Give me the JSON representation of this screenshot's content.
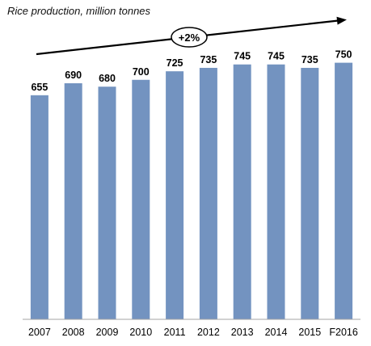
{
  "chart_data": {
    "type": "bar",
    "title": "Rice production, million tonnes",
    "xlabel": "",
    "ylabel": "",
    "categories": [
      "2007",
      "2008",
      "2009",
      "2010",
      "2011",
      "2012",
      "2013",
      "2014",
      "2015",
      "F2016"
    ],
    "values": [
      655,
      690,
      680,
      700,
      725,
      735,
      745,
      745,
      735,
      750
    ],
    "data_labels": [
      "655",
      "690",
      "680",
      "700",
      "725",
      "735",
      "745",
      "745",
      "735",
      "750"
    ],
    "ylim": [
      0,
      800
    ],
    "grid": false,
    "legend": "none",
    "annotations": [
      {
        "type": "trend-arrow",
        "text": "+2%"
      }
    ],
    "colors": {
      "bar": "#7393C0",
      "text": "#000000",
      "axis": "#A6A6A6",
      "arrow": "#000000"
    }
  }
}
